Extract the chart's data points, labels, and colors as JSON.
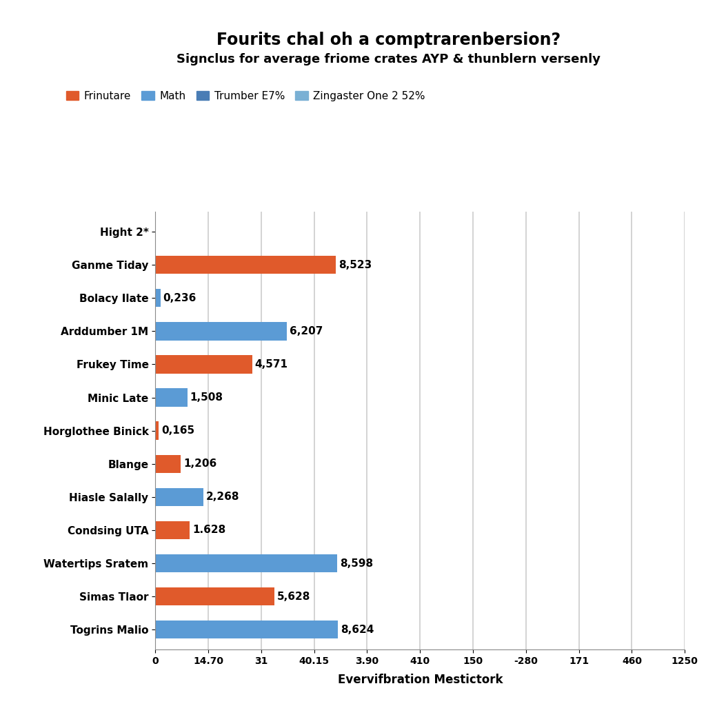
{
  "title": "Fourits chal oh a comptrarenbersion?",
  "subtitle": "Signclus for average friome crates AYP & thunblern versenly",
  "xlabel": "Evervifbration Mestictork",
  "legend_labels": [
    "Frinutare",
    "Math",
    "Trumber E7%",
    "Zingaster One 2 52%"
  ],
  "legend_colors": [
    "#e05a2b",
    "#5b9bd5",
    "#4a7db5",
    "#7ab0d4"
  ],
  "categories": [
    "Togrins Malio",
    "Simas Tlaor",
    "Watertips Sratem",
    "Condsing UTA",
    "Hiasle Salally",
    "Blange",
    "Horglothee Binick",
    "Minic Late",
    "Frukey Time",
    "Arddumber 1M",
    "Bolacy Ilate",
    "Ganme Tiday",
    "Hight 2*"
  ],
  "values": [
    8.624,
    5.628,
    8.598,
    1.628,
    2.268,
    1.206,
    0.165,
    1.508,
    4.571,
    6.207,
    0.236,
    8.523,
    0
  ],
  "bar_colors": [
    "#5b9bd5",
    "#e05a2b",
    "#5b9bd5",
    "#e05a2b",
    "#5b9bd5",
    "#e05a2b",
    "#e05a2b",
    "#5b9bd5",
    "#e05a2b",
    "#5b9bd5",
    "#5b9bd5",
    "#e05a2b",
    "#5b9bd5"
  ],
  "value_labels": [
    "8,624",
    "5,628",
    "8,598",
    "1.628",
    "2,268",
    "1,206",
    "0,165",
    "1,508",
    "4,571",
    "6,207",
    "0,236",
    "8,523",
    ""
  ],
  "xtick_labels": [
    "0",
    "14.70",
    "31",
    "40.15",
    "3.90",
    "410",
    "150",
    "-280",
    "171",
    "460",
    "1250"
  ],
  "xlim": [
    0,
    25
  ],
  "bar_scale": 1.0,
  "bg_color": "#ffffff",
  "plot_bg_color": "#ffffff",
  "grid_color": "#cccccc",
  "title_fontsize": 17,
  "subtitle_fontsize": 13,
  "label_fontsize": 11,
  "ytick_fontsize": 11,
  "xtick_fontsize": 10,
  "bar_height": 0.55
}
